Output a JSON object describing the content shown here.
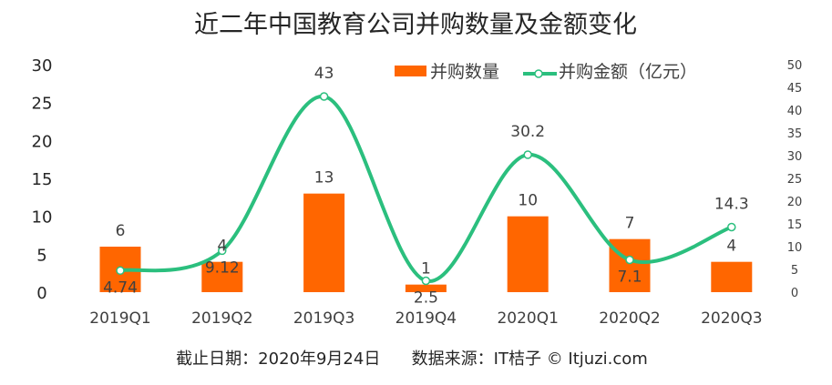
{
  "chart_data": {
    "type": "bar+line",
    "title": "近二年中国教育公司并购数量及金额变化",
    "categories": [
      "2019Q1",
      "2019Q2",
      "2019Q3",
      "2019Q4",
      "2020Q1",
      "2020Q2",
      "2020Q3"
    ],
    "series": [
      {
        "name": "并购数量",
        "type": "bar",
        "axis": "left",
        "color": "#FF6600",
        "values": [
          6,
          4,
          13,
          1,
          10,
          7,
          4
        ],
        "labels": [
          "6",
          "4",
          "13",
          "1",
          "10",
          "7",
          "4"
        ]
      },
      {
        "name": "并购金额（亿元）",
        "type": "line",
        "axis": "right",
        "color": "#2BBF7E",
        "smooth": true,
        "values": [
          4.74,
          9.12,
          43,
          2.5,
          30.2,
          7.1,
          14.3
        ],
        "labels": [
          "4.74",
          "9.12",
          "43",
          "2.5",
          "30.2",
          "7.1",
          "14.3"
        ]
      }
    ],
    "left_axis": {
      "ylim": [
        0,
        30
      ],
      "ticks": [
        "0",
        "5",
        "10",
        "15",
        "20",
        "25",
        "30"
      ]
    },
    "right_axis": {
      "ylim": [
        0,
        50
      ],
      "ticks": [
        "0",
        "5",
        "10",
        "15",
        "20",
        "25",
        "30",
        "35",
        "40",
        "45",
        "50"
      ]
    },
    "grid": false,
    "legend": "top-right"
  },
  "footer": "截止日期：2020年9月24日      数据来源：IT桔子 © Itjuzi.com"
}
